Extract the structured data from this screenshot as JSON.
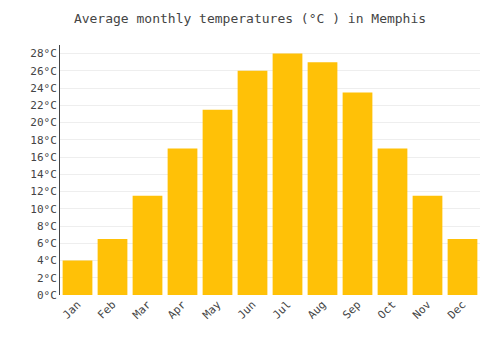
{
  "chart_data": {
    "type": "bar",
    "title": "Average monthly temperatures (°C ) in Memphis",
    "categories": [
      "Jan",
      "Feb",
      "Mar",
      "Apr",
      "May",
      "Jun",
      "Jul",
      "Aug",
      "Sep",
      "Oct",
      "Nov",
      "Dec"
    ],
    "values": [
      4,
      6.5,
      11.5,
      17,
      21.5,
      26,
      28,
      27,
      23.5,
      17,
      11.5,
      6.5
    ],
    "color": "#FFC107",
    "ylim": [
      0,
      29
    ],
    "yticks": [
      {
        "value": 0,
        "label": "0°C"
      },
      {
        "value": 2,
        "label": "2°C"
      },
      {
        "value": 4,
        "label": "4°C"
      },
      {
        "value": 6,
        "label": "6°C"
      },
      {
        "value": 8,
        "label": "8°C"
      },
      {
        "value": 10,
        "label": "10°C"
      },
      {
        "value": 12,
        "label": "12°C"
      },
      {
        "value": 14,
        "label": "14°C"
      },
      {
        "value": 16,
        "label": "16°C"
      },
      {
        "value": 18,
        "label": "18°C"
      },
      {
        "value": 20,
        "label": "20°C"
      },
      {
        "value": 22,
        "label": "22°C"
      },
      {
        "value": 24,
        "label": "24°C"
      },
      {
        "value": 26,
        "label": "26°C"
      },
      {
        "value": 28,
        "label": "28°C"
      }
    ],
    "grid": true
  }
}
